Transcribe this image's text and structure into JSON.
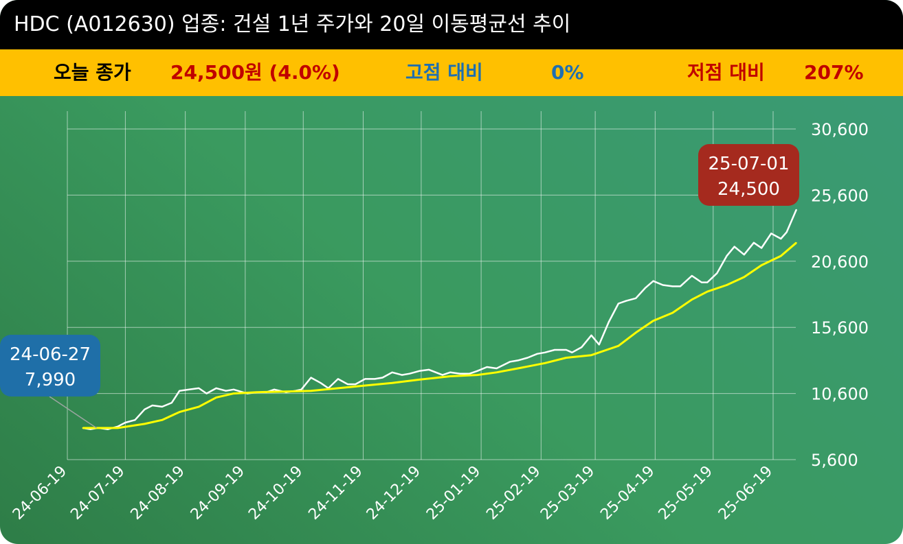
{
  "title": "HDC (A012630) 업종: 건설 1년 주가와 20일 이동평균선 추이",
  "stats": {
    "close_label": "오늘 종가",
    "close_value": "24,500원 (4.0%)",
    "high_label": "고점 대비",
    "high_value": "0%",
    "low_label": "저점 대비",
    "low_value": "207%"
  },
  "colors": {
    "title_bg": "#000000",
    "stat_bg": "#ffc000",
    "close_value": "#c00000",
    "high_text": "#1f6fb0",
    "low_text": "#c00000",
    "price_line": "#ffffff",
    "ma_line": "#ffff00",
    "start_badge": "#1f6fa8",
    "end_badge": "#a52a1e"
  },
  "chart_data": {
    "type": "line",
    "title": "",
    "xlabel": "",
    "ylabel": "",
    "ylim": [
      5600,
      30600
    ],
    "yticks": [
      5600,
      10600,
      15600,
      20600,
      25600,
      30600
    ],
    "ytick_labels": [
      "5,600",
      "10,600",
      "15,600",
      "20,600",
      "25,600",
      "30,600"
    ],
    "xtick_labels": [
      "24-06-19",
      "24-07-19",
      "24-08-19",
      "24-09-19",
      "24-10-19",
      "24-11-19",
      "24-12-19",
      "25-01-19",
      "25-02-19",
      "25-03-19",
      "25-04-19",
      "25-05-19",
      "25-06-19"
    ],
    "xtick_dates": [
      "2024-06-19",
      "2024-07-19",
      "2024-08-19",
      "2024-09-19",
      "2024-10-19",
      "2024-11-19",
      "2024-12-19",
      "2025-01-19",
      "2025-02-19",
      "2025-03-19",
      "2025-04-19",
      "2025-05-19",
      "2025-06-19"
    ],
    "grid": true,
    "series": [
      {
        "role": "price",
        "dates": [
          "2024-06-27",
          "2024-07-01",
          "2024-07-05",
          "2024-07-10",
          "2024-07-15",
          "2024-07-19",
          "2024-07-24",
          "2024-07-29",
          "2024-08-02",
          "2024-08-07",
          "2024-08-12",
          "2024-08-16",
          "2024-08-21",
          "2024-08-26",
          "2024-08-30",
          "2024-09-04",
          "2024-09-09",
          "2024-09-13",
          "2024-09-20",
          "2024-09-25",
          "2024-09-30",
          "2024-10-04",
          "2024-10-10",
          "2024-10-15",
          "2024-10-18",
          "2024-10-23",
          "2024-10-28",
          "2024-11-01",
          "2024-11-06",
          "2024-11-11",
          "2024-11-15",
          "2024-11-20",
          "2024-11-25",
          "2024-11-29",
          "2024-12-04",
          "2024-12-09",
          "2024-12-13",
          "2024-12-18",
          "2024-12-23",
          "2024-12-30",
          "2025-01-03",
          "2025-01-08",
          "2025-01-13",
          "2025-01-17",
          "2025-01-22",
          "2025-01-27",
          "2025-02-03",
          "2025-02-07",
          "2025-02-12",
          "2025-02-17",
          "2025-02-21",
          "2025-02-26",
          "2025-03-04",
          "2025-03-07",
          "2025-03-12",
          "2025-03-17",
          "2025-03-21",
          "2025-03-26",
          "2025-03-31",
          "2025-04-04",
          "2025-04-09",
          "2025-04-14",
          "2025-04-18",
          "2025-04-23",
          "2025-04-28",
          "2025-05-02",
          "2025-05-08",
          "2025-05-13",
          "2025-05-16",
          "2025-05-21",
          "2025-05-26",
          "2025-05-30",
          "2025-06-04",
          "2025-06-09",
          "2025-06-13",
          "2025-06-18",
          "2025-06-23",
          "2025-06-26",
          "2025-07-01"
        ],
        "values": [
          7990,
          7900,
          8000,
          7900,
          8100,
          8400,
          8600,
          9400,
          9700,
          9600,
          9900,
          10800,
          10900,
          11000,
          10600,
          11000,
          10800,
          10900,
          10600,
          10700,
          10700,
          10900,
          10700,
          10800,
          10900,
          11800,
          11400,
          11000,
          11700,
          11300,
          11300,
          11700,
          11700,
          11800,
          12200,
          12000,
          12100,
          12300,
          12400,
          12000,
          12200,
          12100,
          12100,
          12300,
          12600,
          12500,
          13000,
          13100,
          13300,
          13600,
          13700,
          13900,
          13900,
          13700,
          14100,
          15000,
          14300,
          16000,
          17400,
          17600,
          17800,
          18600,
          19100,
          18800,
          18700,
          18700,
          19500,
          19000,
          19000,
          19700,
          21000,
          21700,
          21100,
          22000,
          21600,
          22700,
          22300,
          22800,
          24500
        ]
      },
      {
        "role": "ma20",
        "dates": [
          "2024-06-27",
          "2024-07-15",
          "2024-07-29",
          "2024-08-07",
          "2024-08-16",
          "2024-08-26",
          "2024-09-04",
          "2024-09-13",
          "2024-09-25",
          "2024-10-10",
          "2024-10-23",
          "2024-11-06",
          "2024-11-20",
          "2024-12-04",
          "2024-12-18",
          "2025-01-03",
          "2025-01-17",
          "2025-01-27",
          "2025-02-07",
          "2025-02-21",
          "2025-03-04",
          "2025-03-17",
          "2025-03-31",
          "2025-04-09",
          "2025-04-18",
          "2025-04-28",
          "2025-05-08",
          "2025-05-16",
          "2025-05-26",
          "2025-06-04",
          "2025-06-13",
          "2025-06-23",
          "2025-07-01"
        ],
        "values": [
          7990,
          7990,
          8300,
          8600,
          9200,
          9600,
          10300,
          10600,
          10700,
          10750,
          10800,
          11000,
          11200,
          11400,
          11650,
          11900,
          12000,
          12200,
          12500,
          12900,
          13300,
          13500,
          14200,
          15200,
          16100,
          16700,
          17700,
          18300,
          18800,
          19400,
          20300,
          21000,
          22000
        ]
      }
    ],
    "annotations": [
      {
        "date": "24-06-27",
        "value": "7,990",
        "position": "left"
      },
      {
        "date": "25-07-01",
        "value": "24,500",
        "position": "top-right"
      }
    ]
  }
}
